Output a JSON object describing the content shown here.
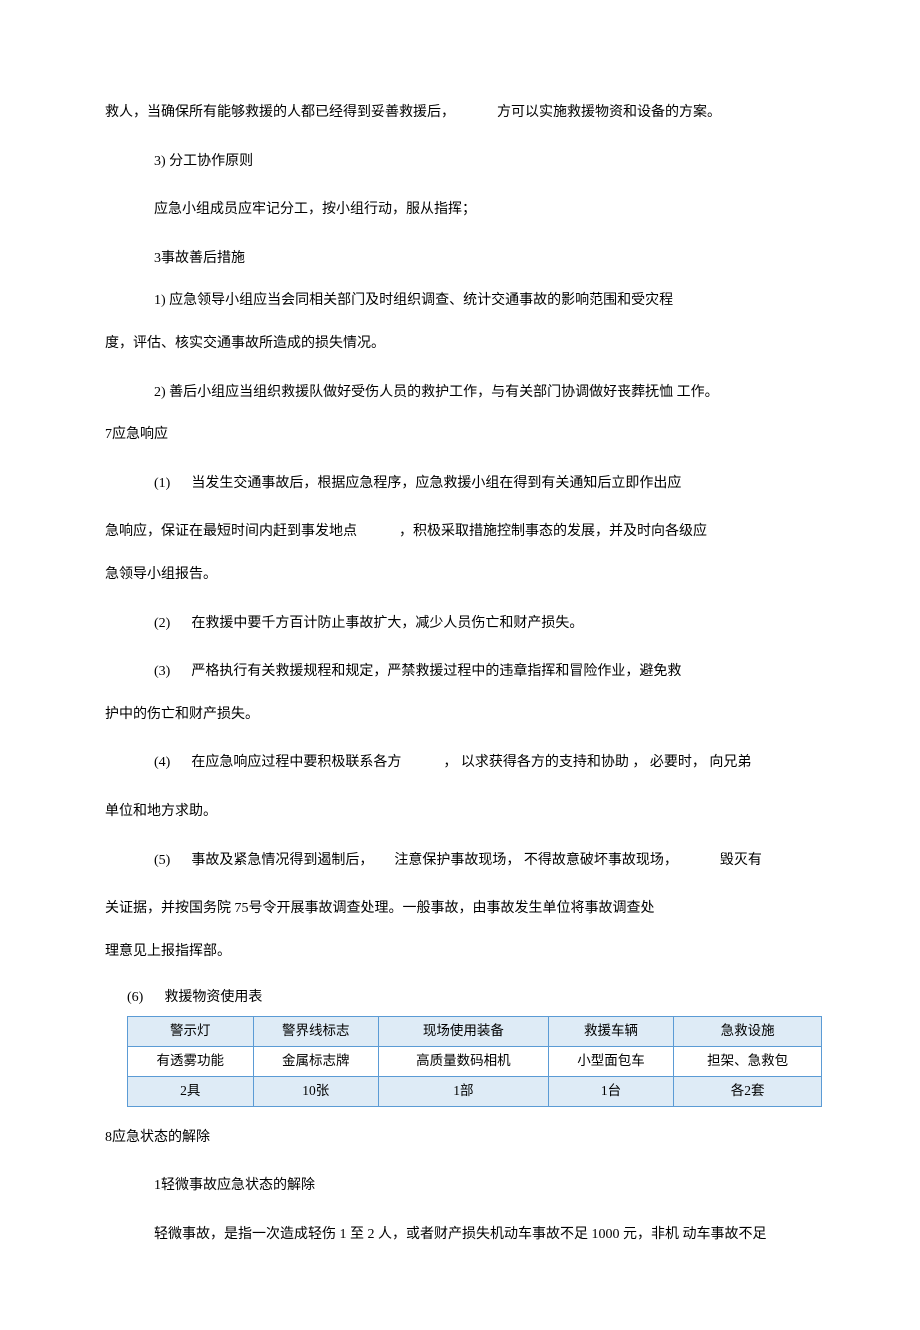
{
  "p1_a": "救人，当确保所有能够救援的人都已经得到妥善救援后，",
  "p1_b": "方可以实施救援物资和设备的方案。",
  "p2": "3)  分工协作原则",
  "p3": "应急小组成员应牢记分工，按小组行动，服从指挥；",
  "p4": "3事故善后措施",
  "p5": "1)  应急领导小组应当会同相关部门及时组织调查、统计交通事故的影响范围和受灾程",
  "p6": "度，评估、核实交通事故所造成的损失情况。",
  "p7": "2)  善后小组应当组织救援队做好受伤人员的救护工作，与有关部门协调做好丧葬抚恤  工作。",
  "p8": "7应急响应",
  "p9_a": "(1)",
  "p9_b": "当发生交通事故后，根据应急程序，应急救援小组在得到有关通知后立即作出应",
  "p10_a": "急响应，保证在最短时间内赶到事发地点",
  "p10_b": "，积极采取措施控制事态的发展，并及时向各级应",
  "p11": "急领导小组报告。",
  "p12_a": "(2)",
  "p12_b": "在救援中要千方百计防止事故扩大，减少人员伤亡和财产损失。",
  "p13_a": "(3)",
  "p13_b": "严格执行有关救援规程和规定，严禁救援过程中的违章指挥和冒险作业，避免救",
  "p14": "护中的伤亡和财产损失。",
  "p15_a": "(4)",
  "p15_b": "在应急响应过程中要积极联系各方",
  "p15_c": "， 以求获得各方的支持和协助 ， 必要时， 向兄弟",
  "p16": "单位和地方求助。",
  "p17_a": "(5)",
  "p17_b": "事故及紧急情况得到遏制后，",
  "p17_c": "注意保护事故现场， 不得故意破坏事故现场，",
  "p17_d": "毁灭有",
  "p18": "关证据，并按国务院  75号令开展事故调查处理。一般事故，由事故发生单位将事故调查处",
  "p19": "理意见上报指挥部。",
  "caption_a": "(6)",
  "caption_b": "救援物资使用表",
  "table": {
    "border_color": "#5b9bd5",
    "shade_color": "#deebf6",
    "rows": [
      [
        "警示灯",
        "警界线标志",
        "现场使用装备",
        "救援车辆",
        "急救设施"
      ],
      [
        "有透雾功能",
        "金属标志牌",
        "高质量数码相机",
        "小型面包车",
        "担架、急救包"
      ],
      [
        "2具",
        "10张",
        "1部",
        "1台",
        "各2套"
      ]
    ]
  },
  "p20": "8应急状态的解除",
  "p21": "1轻微事故应急状态的解除",
  "p22": "轻微事故，是指一次造成轻伤  1 至  2 人，或者财产损失机动车事故不足  1000 元，非机  动车事故不足"
}
